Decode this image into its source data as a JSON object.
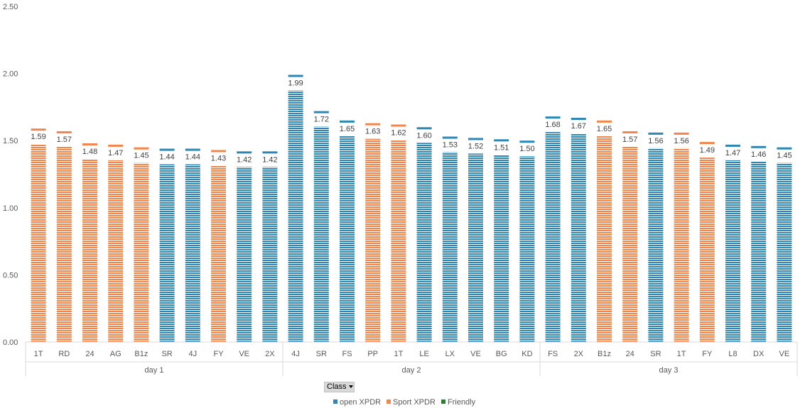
{
  "chart_data": {
    "type": "bar",
    "ylim": [
      0,
      2.5
    ],
    "yticks": [
      "0.00",
      "0.50",
      "1.00",
      "1.50",
      "2.00",
      "2.50"
    ],
    "groups": [
      {
        "label": "day 1",
        "bars": [
          {
            "cat": "1T",
            "value": 1.59,
            "label": "1.59",
            "series": "Sport XPDR"
          },
          {
            "cat": "RD",
            "value": 1.57,
            "label": "1.57",
            "series": "Sport XPDR"
          },
          {
            "cat": "24",
            "value": 1.48,
            "label": "1.48",
            "series": "Sport XPDR"
          },
          {
            "cat": "AG",
            "value": 1.47,
            "label": "1.47",
            "series": "Sport XPDR"
          },
          {
            "cat": "B1z",
            "value": 1.45,
            "label": "1.45",
            "series": "Sport XPDR"
          },
          {
            "cat": "SR",
            "value": 1.44,
            "label": "1.44",
            "series": "open XPDR"
          },
          {
            "cat": "4J",
            "value": 1.44,
            "label": "1.44",
            "series": "open XPDR"
          },
          {
            "cat": "FY",
            "value": 1.43,
            "label": "1.43",
            "series": "Sport XPDR"
          },
          {
            "cat": "VE",
            "value": 1.42,
            "label": "1.42",
            "series": "open XPDR"
          },
          {
            "cat": "2X",
            "value": 1.42,
            "label": "1.42",
            "series": "open XPDR"
          }
        ]
      },
      {
        "label": "day 2",
        "bars": [
          {
            "cat": "4J",
            "value": 1.99,
            "label": "1.99",
            "series": "open XPDR"
          },
          {
            "cat": "SR",
            "value": 1.72,
            "label": "1.72",
            "series": "open XPDR"
          },
          {
            "cat": "FS",
            "value": 1.65,
            "label": "1.65",
            "series": "open XPDR"
          },
          {
            "cat": "PP",
            "value": 1.63,
            "label": "1.63",
            "series": "Sport XPDR"
          },
          {
            "cat": "1T",
            "value": 1.62,
            "label": "1.62",
            "series": "Sport XPDR"
          },
          {
            "cat": "LE",
            "value": 1.6,
            "label": "1.60",
            "series": "open XPDR"
          },
          {
            "cat": "LX",
            "value": 1.53,
            "label": "1.53",
            "series": "open XPDR"
          },
          {
            "cat": "VE",
            "value": 1.52,
            "label": "1.52",
            "series": "open XPDR"
          },
          {
            "cat": "BG",
            "value": 1.51,
            "label": "1.51",
            "series": "open XPDR"
          },
          {
            "cat": "KD",
            "value": 1.5,
            "label": "1.50",
            "series": "open XPDR"
          }
        ]
      },
      {
        "label": "day 3",
        "bars": [
          {
            "cat": "FS",
            "value": 1.68,
            "label": "1.68",
            "series": "open XPDR"
          },
          {
            "cat": "2X",
            "value": 1.67,
            "label": "1.67",
            "series": "open XPDR"
          },
          {
            "cat": "B1z",
            "value": 1.65,
            "label": "1.65",
            "series": "Sport XPDR"
          },
          {
            "cat": "24",
            "value": 1.57,
            "label": "1.57",
            "series": "Sport XPDR"
          },
          {
            "cat": "SR",
            "value": 1.56,
            "label": "1.56",
            "series": "open XPDR"
          },
          {
            "cat": "1T",
            "value": 1.56,
            "label": "1.56",
            "series": "Sport XPDR"
          },
          {
            "cat": "FY",
            "value": 1.49,
            "label": "1.49",
            "series": "Sport XPDR"
          },
          {
            "cat": "L8",
            "value": 1.47,
            "label": "1.47",
            "series": "open XPDR"
          },
          {
            "cat": "DX",
            "value": 1.46,
            "label": "1.46",
            "series": "open XPDR"
          },
          {
            "cat": "VE",
            "value": 1.45,
            "label": "1.45",
            "series": "open XPDR"
          }
        ]
      }
    ],
    "legend": [
      {
        "name": "open XPDR",
        "color": "#2e86b5"
      },
      {
        "name": "Sport XPDR",
        "color": "#f0864d"
      },
      {
        "name": "Friendly",
        "color": "#2e7d32"
      }
    ],
    "legend_position": "bottom",
    "grid": false
  },
  "filter": {
    "label": "Class"
  }
}
